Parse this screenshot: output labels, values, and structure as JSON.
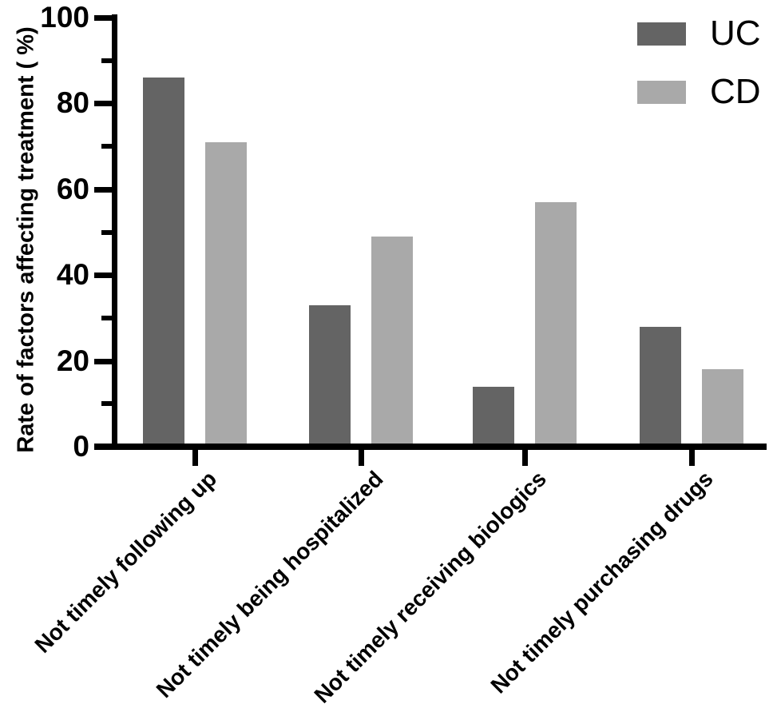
{
  "chart_data": {
    "type": "bar",
    "title": "",
    "categories": [
      "Not timely following up",
      "Not timely being hospitalized",
      "Not timely receiving biologics",
      "Not timely purchasing drugs"
    ],
    "series": [
      {
        "name": "UC",
        "color": "#646464",
        "values": [
          86,
          33,
          14,
          28
        ]
      },
      {
        "name": "CD",
        "color": "#a9a9a9",
        "values": [
          71,
          49,
          57,
          18
        ]
      }
    ],
    "xlabel": "",
    "ylabel": "Rate of factors affecting treatment ( %)",
    "ylim": [
      0,
      100
    ],
    "yticks": [
      0,
      20,
      40,
      60,
      80,
      100
    ],
    "minor_yticks": [
      10,
      30,
      50,
      70,
      90
    ],
    "grid": false,
    "legend_position": "top-right",
    "bar_orientation": "vertical"
  },
  "legend": {
    "items": [
      {
        "label": "UC",
        "color": "#646464"
      },
      {
        "label": "CD",
        "color": "#a9a9a9"
      }
    ]
  },
  "style": {
    "axis_color": "#000000",
    "text_color": "#000000",
    "background": "#ffffff"
  }
}
